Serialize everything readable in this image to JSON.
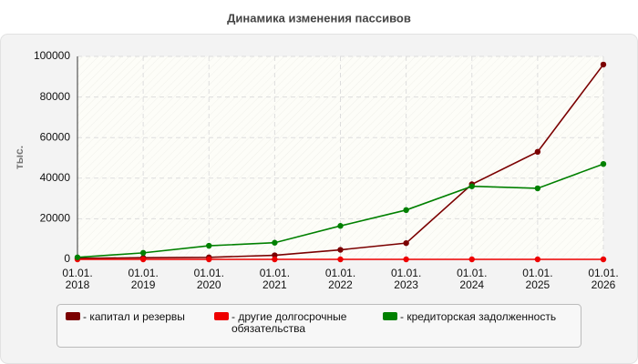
{
  "chart_data": {
    "type": "line",
    "title": "Динамика изменения пассивов",
    "y_label": "тыс.",
    "categories": [
      "01.01.\n2018",
      "01.01.\n2019",
      "01.01.\n2020",
      "01.01.\n2021",
      "01.01.\n2022",
      "01.01.\n2023",
      "01.01.\n2024",
      "01.01.\n2025",
      "01.01.\n2026"
    ],
    "series": [
      {
        "name": "- капитал и резервы",
        "color": "#7b0000",
        "values": [
          500,
          800,
          1000,
          2000,
          4700,
          8000,
          37000,
          53000,
          96000
        ]
      },
      {
        "name": "- другие долгосрочные\nобязательства",
        "color": "#ee0000",
        "values": [
          0,
          0,
          0,
          0,
          0,
          0,
          0,
          0,
          0
        ]
      },
      {
        "name": "- кредиторская задолженность",
        "color": "#008000",
        "values": [
          1000,
          3200,
          6700,
          8200,
          16500,
          24300,
          36000,
          35000,
          47000
        ]
      }
    ],
    "ylim": [
      0,
      100000
    ],
    "yticks": [
      0,
      20000,
      40000,
      60000,
      80000,
      100000
    ],
    "grid": true
  }
}
